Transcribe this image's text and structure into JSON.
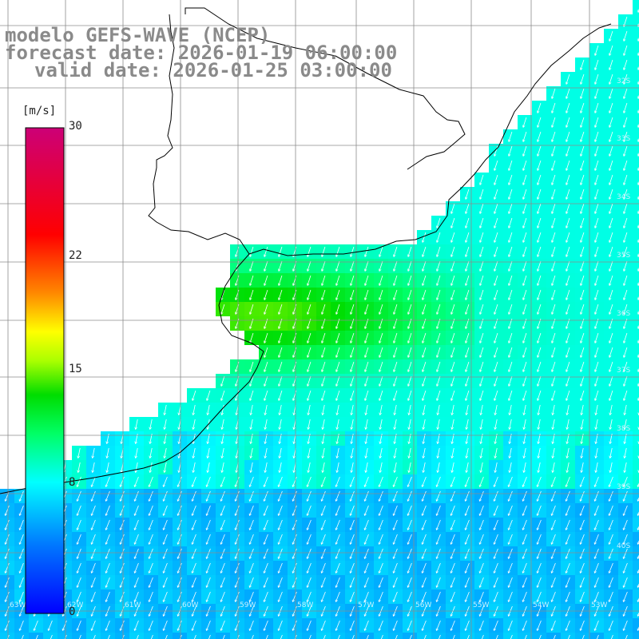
{
  "title": {
    "model": "modelo GEFS-WAVE (NCEP)",
    "forecast": "forecast date: 2026-01-19 06:00:00",
    "valid": "valid date: 2026-01-25 03:00:00"
  },
  "colorbar": {
    "unit": "[m/s]",
    "min": 0,
    "max": 30,
    "ticks": [
      {
        "value": 30,
        "label": "30"
      },
      {
        "value": 22,
        "label": "22"
      },
      {
        "value": 15,
        "label": "15"
      },
      {
        "value": 8,
        "label": "8"
      },
      {
        "value": 0,
        "label": "0"
      }
    ],
    "colors": [
      "#0000ff",
      "#0077ff",
      "#00bbff",
      "#00ffff",
      "#00ff66",
      "#00dd00",
      "#aaff00",
      "#ffff00",
      "#ff8800",
      "#ff0000",
      "#cc0077"
    ]
  },
  "grid": {
    "right_labels": [
      "32S",
      "33S",
      "34S",
      "35S",
      "36S",
      "37S",
      "38S",
      "39S",
      "40S"
    ],
    "bottom_labels": [
      "63W",
      "62W",
      "61W",
      "60W",
      "59W",
      "58W",
      "57W",
      "56W",
      "55W",
      "54W",
      "53W"
    ]
  }
}
